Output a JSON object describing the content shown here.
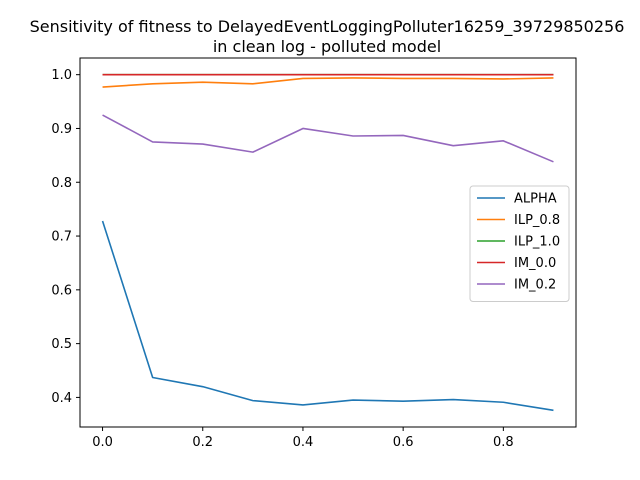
{
  "chart_data": {
    "type": "line",
    "title": "Sensitivity of fitness to DelayedEventLoggingPolluter16259_39729850256\nin clean log - polluted model",
    "xlabel": "",
    "ylabel": "",
    "x": [
      0.0,
      0.1,
      0.2,
      0.3,
      0.4,
      0.5,
      0.6,
      0.7,
      0.8,
      0.9
    ],
    "xlim": [
      -0.045,
      0.945
    ],
    "ylim": [
      0.345,
      1.031
    ],
    "xticks": [
      0.0,
      0.2,
      0.4,
      0.6,
      0.8
    ],
    "xtick_labels": [
      "0.0",
      "0.2",
      "0.4",
      "0.6",
      "0.8"
    ],
    "yticks": [
      0.4,
      0.5,
      0.6,
      0.7,
      0.8,
      0.9,
      1.0
    ],
    "ytick_labels": [
      "0.4",
      "0.5",
      "0.6",
      "0.7",
      "0.8",
      "0.9",
      "1.0"
    ],
    "grid": false,
    "legend_position": "center-right",
    "series": [
      {
        "name": "ALPHA",
        "color": "#1f77b4",
        "values": [
          0.728,
          0.437,
          0.42,
          0.394,
          0.386,
          0.395,
          0.393,
          0.396,
          0.391,
          0.376
        ]
      },
      {
        "name": "ILP_0.8",
        "color": "#ff7f0e",
        "values": [
          0.977,
          0.983,
          0.986,
          0.983,
          0.993,
          0.994,
          0.993,
          0.993,
          0.992,
          0.994
        ]
      },
      {
        "name": "ILP_1.0",
        "color": "#2ca02c",
        "values": [
          1.0,
          1.0,
          1.0,
          1.0,
          1.0,
          1.0,
          1.0,
          1.0,
          1.0,
          1.0
        ]
      },
      {
        "name": "IM_0.0",
        "color": "#d62728",
        "values": [
          1.0,
          1.0,
          1.0,
          1.0,
          1.0,
          1.0,
          1.0,
          1.0,
          1.0,
          1.0
        ]
      },
      {
        "name": "IM_0.2",
        "color": "#9467bd",
        "values": [
          0.925,
          0.875,
          0.871,
          0.856,
          0.9,
          0.886,
          0.887,
          0.868,
          0.877,
          0.838
        ]
      }
    ]
  }
}
